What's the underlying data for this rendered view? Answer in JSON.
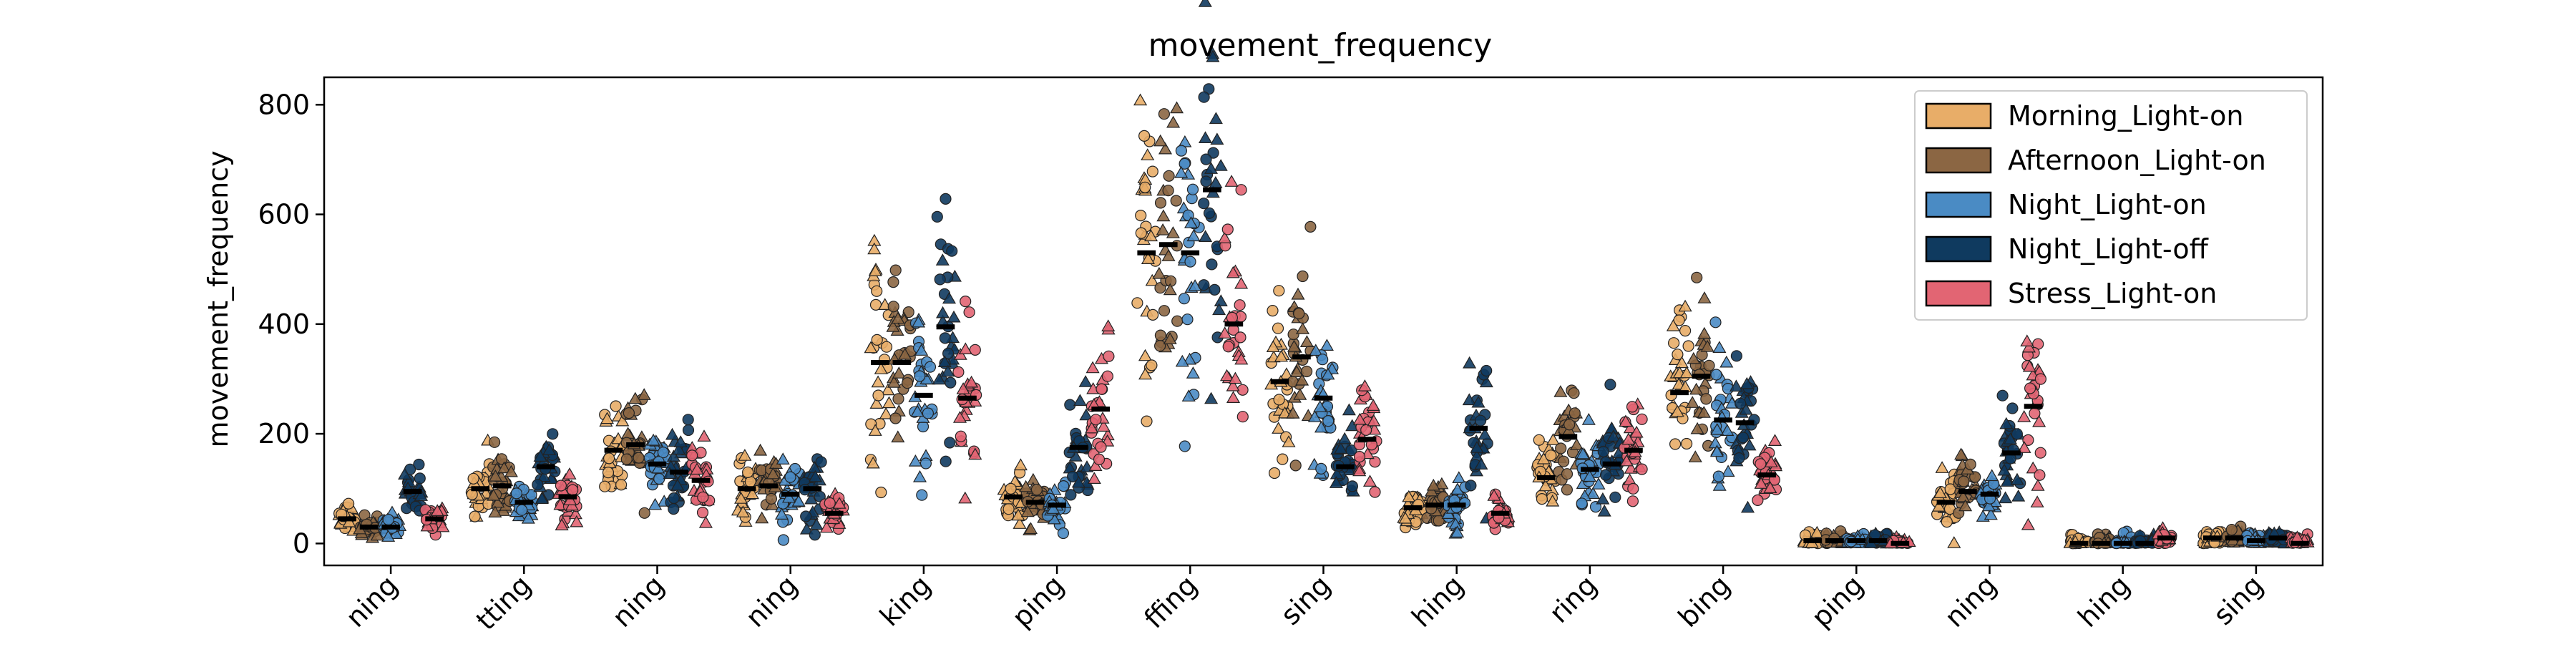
{
  "chart_data": {
    "type": "scatter",
    "title": "movement_frequency",
    "xlabel": "",
    "ylabel": "movement_frequency",
    "ylim": [
      -40,
      850
    ],
    "yticks": [
      0,
      200,
      400,
      600,
      800
    ],
    "categories": [
      "ning",
      "tting",
      "ning",
      "ning",
      "king",
      "ping",
      "ffing",
      "sing",
      "hing",
      "ring",
      "bing",
      "ping",
      "ning",
      "hing",
      "sing"
    ],
    "legend_position": "top-right",
    "series": [
      {
        "name": "Morning_Light-on",
        "color": "#E8AD68",
        "values": [
          45,
          100,
          170,
          100,
          330,
          85,
          530,
          295,
          65,
          120,
          275,
          5,
          75,
          0,
          10
        ]
      },
      {
        "name": "Afternoon_Light-on",
        "color": "#8B6643",
        "values": [
          30,
          105,
          180,
          105,
          330,
          75,
          545,
          340,
          70,
          195,
          305,
          5,
          95,
          0,
          10
        ]
      },
      {
        "name": "Night_Light-on",
        "color": "#4A8BC4",
        "values": [
          30,
          75,
          145,
          90,
          270,
          70,
          530,
          265,
          70,
          135,
          225,
          5,
          90,
          0,
          5
        ]
      },
      {
        "name": "Night_Light-off",
        "color": "#0F3A5F",
        "values": [
          95,
          140,
          130,
          100,
          395,
          175,
          645,
          140,
          210,
          145,
          220,
          5,
          165,
          0,
          10
        ]
      },
      {
        "name": "Stress_Light-on",
        "color": "#E26573",
        "values": [
          45,
          85,
          115,
          55,
          265,
          245,
          400,
          190,
          55,
          170,
          125,
          0,
          250,
          10,
          0
        ]
      }
    ]
  }
}
